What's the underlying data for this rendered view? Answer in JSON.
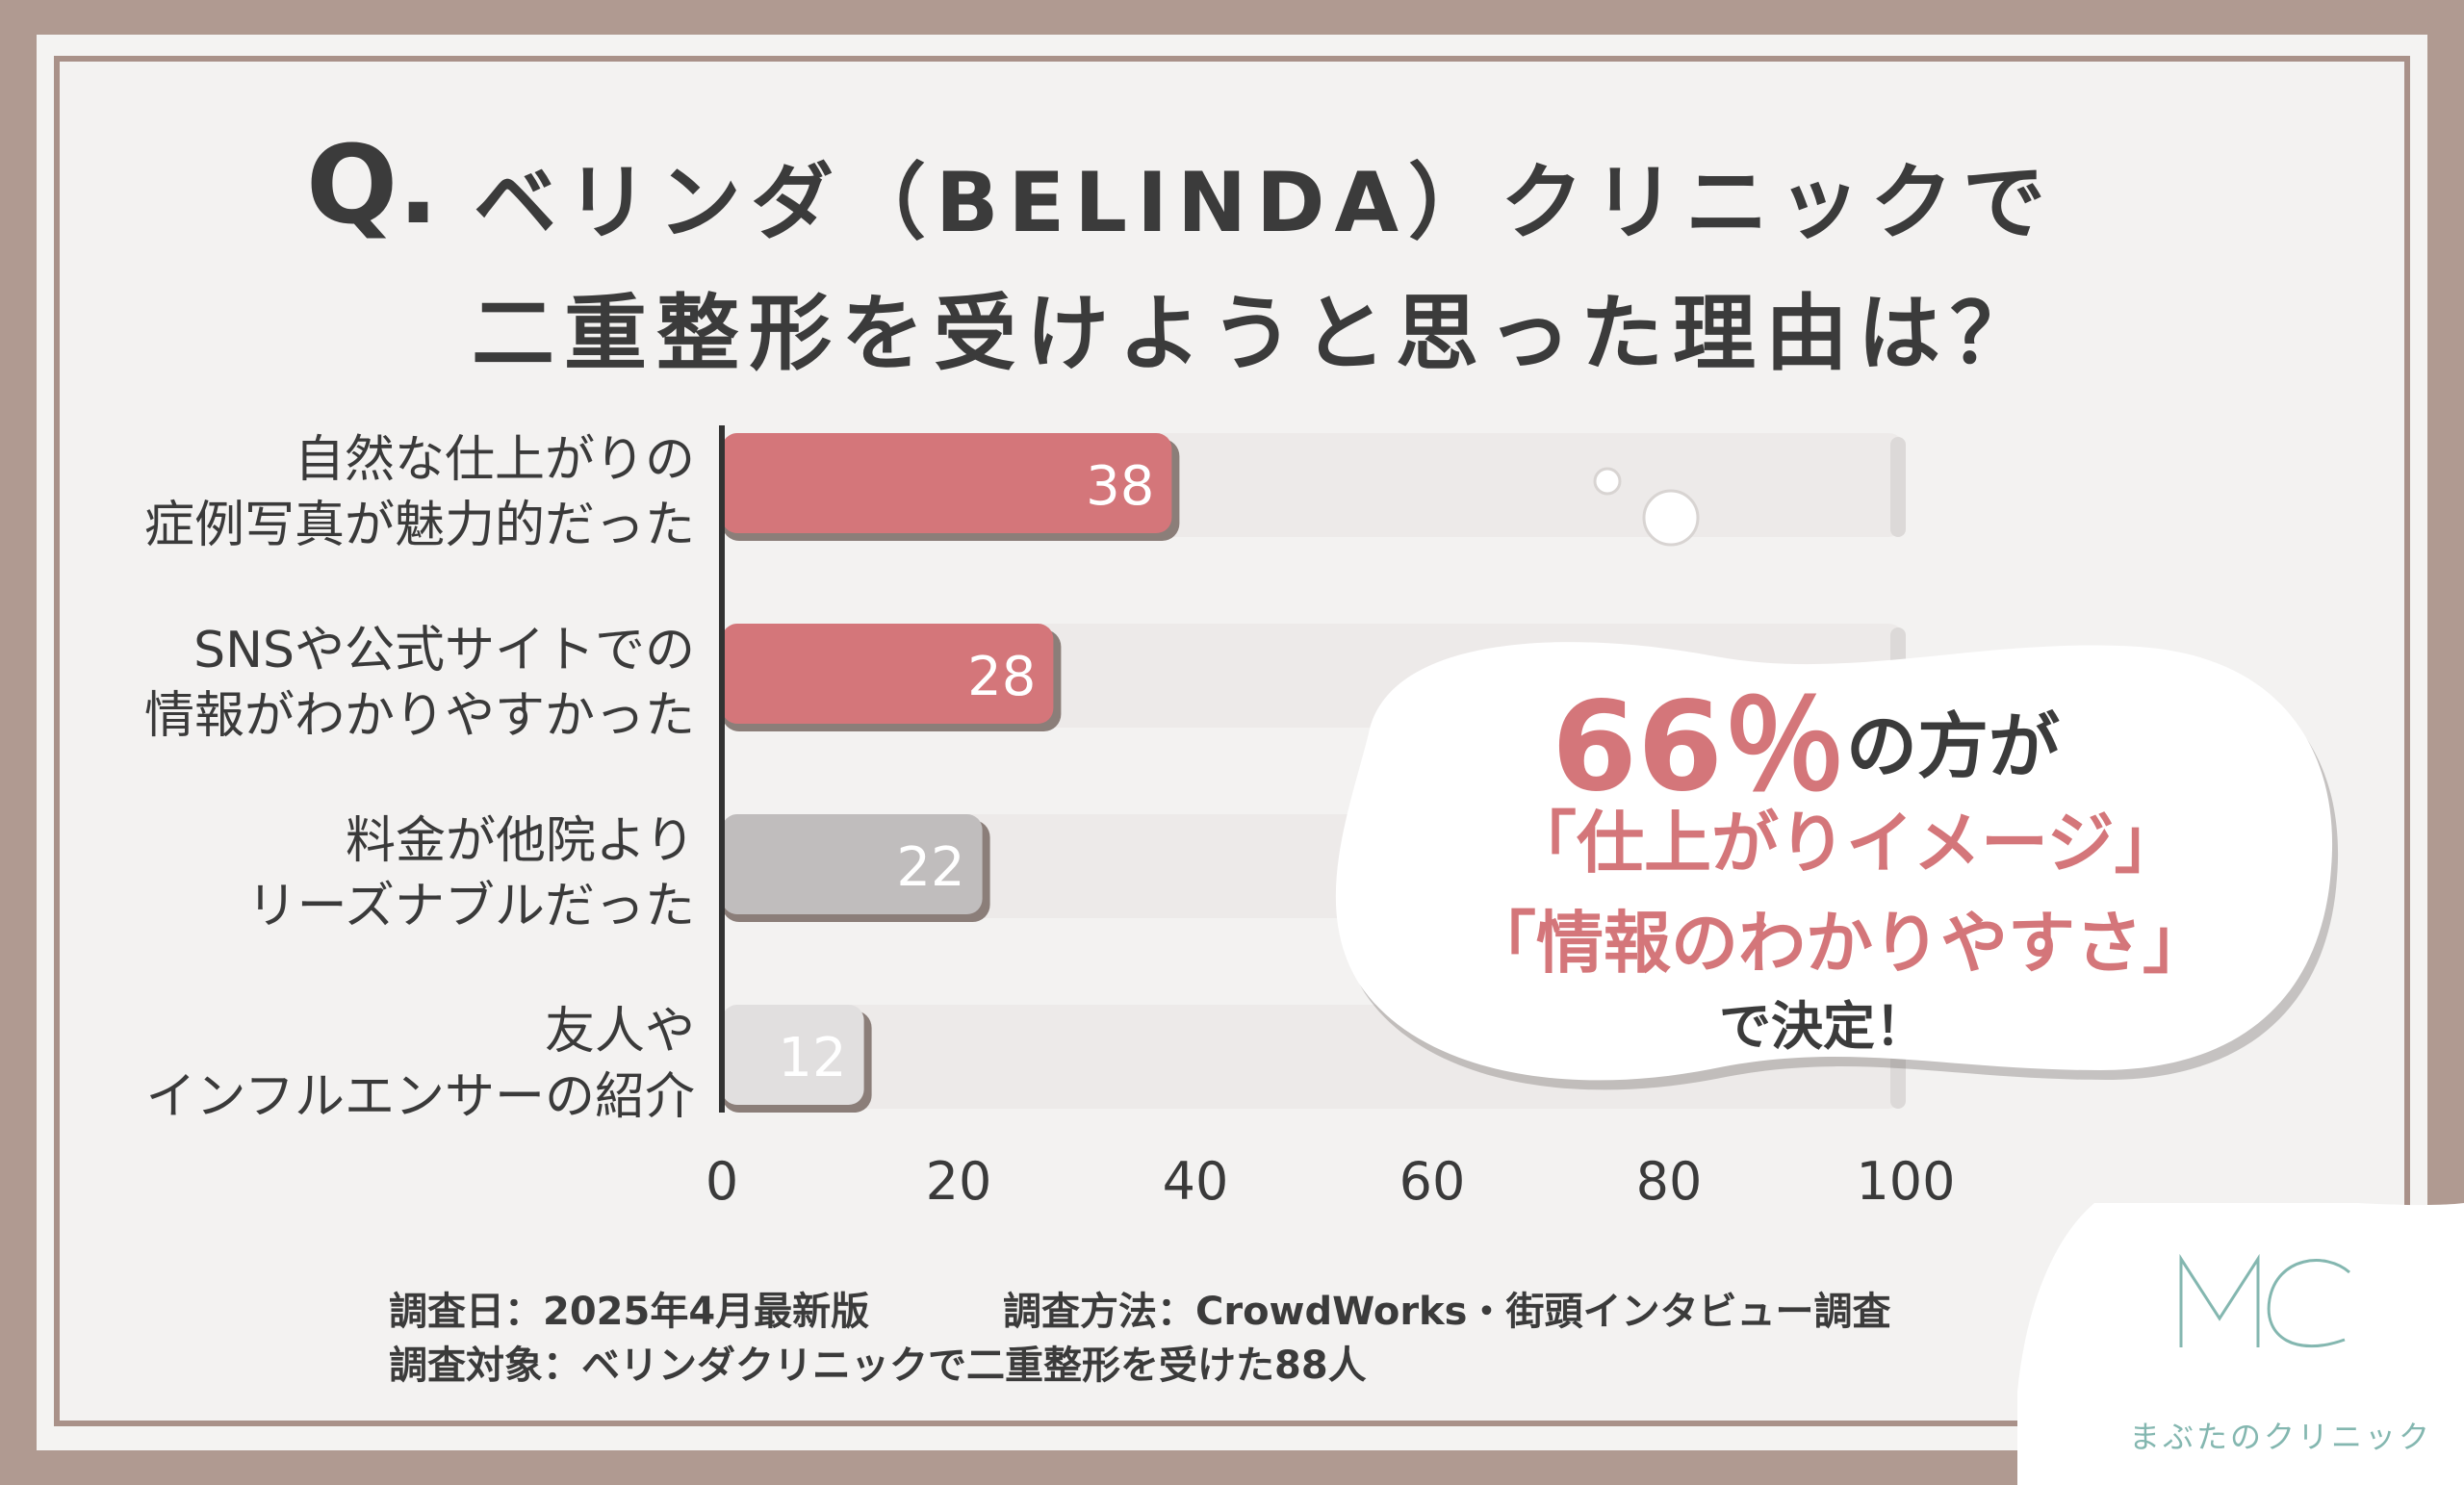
{
  "title": {
    "q_mark": "Q.",
    "line1": "ベリンダ（BELINDA）クリニックで",
    "line2": "二重整形を受けようと思った理由は？"
  },
  "chart_data": {
    "type": "bar",
    "orientation": "horizontal",
    "categories": [
      "自然な仕上がりの\n症例写真が魅力的だった",
      "SNSや公式サイトでの\n情報がわかりやすかった",
      "料金が他院より\nリーズナブルだった",
      "友人や\nインフルエンサーの紹介"
    ],
    "values": [
      38,
      28,
      22,
      12
    ],
    "xlim": [
      0,
      100
    ],
    "xticks": [
      "0",
      "20",
      "40",
      "60",
      "80",
      "100"
    ],
    "bar_colors": [
      "#d4767a",
      "#d4767a",
      "#c0bdbd",
      "#e1dfdf"
    ],
    "grid": false
  },
  "callout": {
    "big": "66％",
    "suffix": "の方が",
    "line1": "「仕上がりイメージ」",
    "line2": "「情報のわかりやすさ」",
    "line3": "で決定！"
  },
  "notes": {
    "date": "調査日：2025年4月最新版",
    "method": "調査方法：CrowdWorks・街頭インタビュー調査",
    "target": "調査対象：ベリンダクリニックで二重整形を受けた88人"
  },
  "logo": {
    "mark": "MC",
    "name": "まぶたのクリニック"
  },
  "colors": {
    "frame": "#b09a91",
    "accent": "#d4767a",
    "logo": "#84b7b0"
  }
}
